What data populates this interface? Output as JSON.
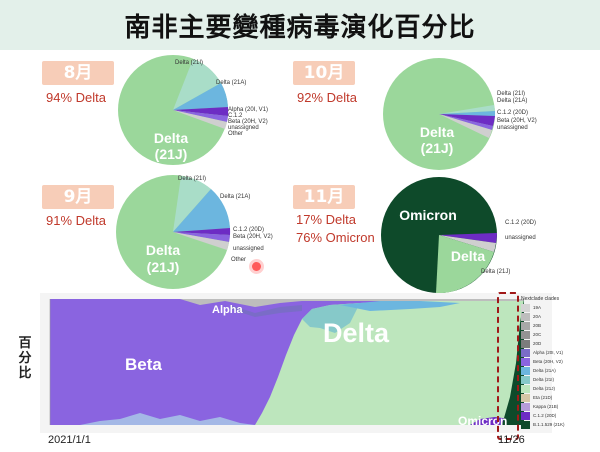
{
  "title": "南非主要變種病毒演化百分比",
  "colors": {
    "delta": "#9bd79b",
    "delta_light": "#bde6bd",
    "delta21a": "#6cb6df",
    "beta": "#8a64e0",
    "c12": "#6d2cc4",
    "unassigned": "#cfcfcf",
    "omicron": "#0e4a2a",
    "alpha": "#7a6cc7",
    "month_bg": "#f7cdb8",
    "pct_text": "#c0392b",
    "title_bg": "#e3f0ea"
  },
  "panels": {
    "aug": {
      "month": "8月",
      "pct": "94% Delta",
      "center_label": "Delta",
      "center_sub": "(21J)",
      "labels": {
        "delta21i": "Delta (21I)",
        "delta21a": "Delta (21A)",
        "alpha": "Alpha (20I, V1)",
        "c12": "C.1.2",
        "beta": "Beta (20H, V2)",
        "unassigned": "unassigned",
        "other": "Other"
      }
    },
    "oct": {
      "month": "10月",
      "pct": "92% Delta",
      "center_label": "Delta",
      "center_sub": "(21J)",
      "labels": {
        "delta21i": "Delta (21I)",
        "delta21a": "Delta (21A)",
        "c12": "C.1.2 (20D)",
        "beta": "Beta (20H, V2)",
        "unassigned": "unassigned"
      }
    },
    "sep": {
      "month": "9月",
      "pct": "91% Delta",
      "center_label": "Delta",
      "center_sub": "(21J)",
      "labels": {
        "delta21i": "Delta (21I)",
        "delta21a": "Delta (21A)",
        "c12": "C.1.2 (20D)",
        "beta": "Beta (20H, V2)",
        "unassigned": "unassigned",
        "other": "Other"
      }
    },
    "nov": {
      "month": "11月",
      "pct1": "17% Delta",
      "pct2": "76% Omicron",
      "center_label": "Omicron",
      "delta_label": "Delta",
      "labels": {
        "c12": "C.1.2 (20D)",
        "unassigned": "unassigned",
        "delta21j": "Delta (21J)"
      }
    }
  },
  "stream": {
    "ylabel": "百分比",
    "x_start": "2021/1/1",
    "x_end": "11/26",
    "beta": "Beta",
    "alpha": "Alpha",
    "delta": "Delta",
    "omicron": "Omicron",
    "legend_title": "Nextclade clades",
    "legend": [
      {
        "name": "19A",
        "color": "#d4d4d4"
      },
      {
        "name": "20A",
        "color": "#bdbdbd"
      },
      {
        "name": "20B",
        "color": "#a8a8a8"
      },
      {
        "name": "20C",
        "color": "#939393"
      },
      {
        "name": "20D",
        "color": "#7c7c7c"
      },
      {
        "name": "Alpha (20I, V1)",
        "color": "#7a6cc7"
      },
      {
        "name": "Beta (20H, V2)",
        "color": "#8a64e0"
      },
      {
        "name": "Delta (21A)",
        "color": "#6cb6df"
      },
      {
        "name": "Delta (21I)",
        "color": "#86c9c9"
      },
      {
        "name": "Delta (21J)",
        "color": "#bde6bd"
      },
      {
        "name": "Eta (21D)",
        "color": "#d6c7a6"
      },
      {
        "name": "Kappa (21B)",
        "color": "#b69cd9"
      },
      {
        "name": "C.1.2 (20D)",
        "color": "#6d2cc4"
      },
      {
        "name": "B.1.1.529 (21K)",
        "color": "#0e4a2a"
      }
    ]
  }
}
